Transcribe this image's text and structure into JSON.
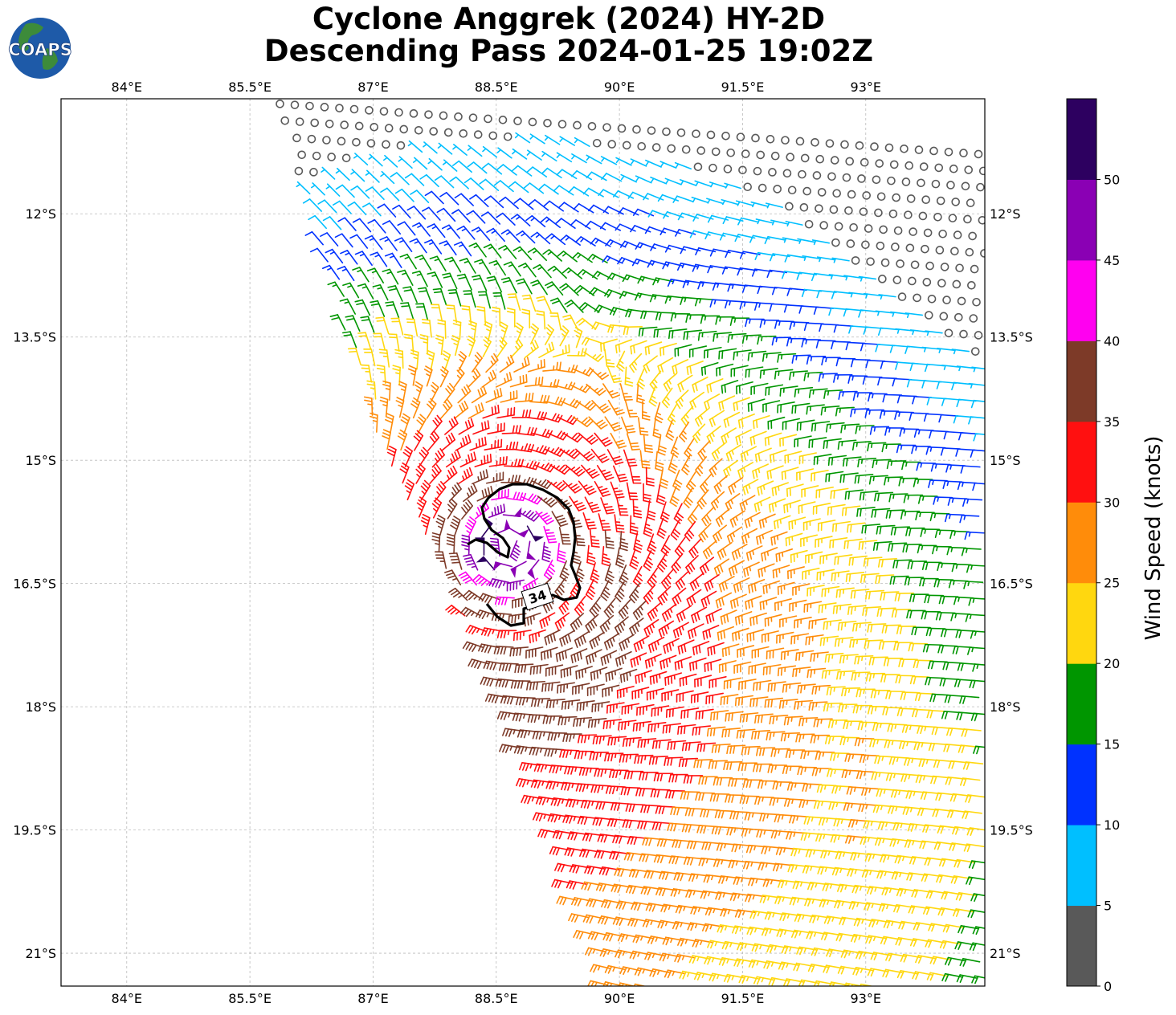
{
  "title": {
    "line1": "Cyclone Anggrek (2024) HY-2D",
    "line2": "Descending Pass 2024-01-25 19:02Z"
  },
  "logo": {
    "text": "COAPS",
    "icon": "globe-logo-icon"
  },
  "map": {
    "lon_range": [
      83.2,
      94.45
    ],
    "lat_range": [
      -21.4,
      -10.6
    ],
    "lon_ticks": [
      "84°E",
      "85.5°E",
      "87°E",
      "88.5°E",
      "90°E",
      "91.5°E",
      "93°E"
    ],
    "lon_tick_values": [
      84,
      85.5,
      87,
      88.5,
      90,
      91.5,
      93
    ],
    "lat_ticks": [
      "12°S",
      "13.5°S",
      "15°S",
      "16.5°S",
      "18°S",
      "19.5°S",
      "21°S"
    ],
    "lat_tick_values": [
      -12,
      -13.5,
      -15,
      -16.5,
      -18,
      -19.5,
      -21
    ],
    "gridlines": true,
    "center": {
      "lon": 88.65,
      "lat": -16.05
    },
    "contour_label": "34",
    "barb_units": "knots"
  },
  "colorbar": {
    "label": "Wind Speed (knots)",
    "ticks": [
      "0",
      "5",
      "10",
      "15",
      "20",
      "25",
      "30",
      "35",
      "40",
      "45",
      "50"
    ],
    "bins": [
      {
        "min": 0,
        "max": 5,
        "color": "#595959"
      },
      {
        "min": 5,
        "max": 10,
        "color": "#00bfff"
      },
      {
        "min": 10,
        "max": 15,
        "color": "#0032ff"
      },
      {
        "min": 15,
        "max": 20,
        "color": "#009600"
      },
      {
        "min": 20,
        "max": 25,
        "color": "#ffd70f"
      },
      {
        "min": 25,
        "max": 30,
        "color": "#ff8c0a"
      },
      {
        "min": 30,
        "max": 35,
        "color": "#ff1010"
      },
      {
        "min": 35,
        "max": 40,
        "color": "#7d3a28"
      },
      {
        "min": 40,
        "max": 45,
        "color": "#ff00f0"
      },
      {
        "min": 45,
        "max": 50,
        "color": "#8a00b4"
      },
      {
        "min": 50,
        "max": 55,
        "color": "#2d0060"
      }
    ]
  }
}
